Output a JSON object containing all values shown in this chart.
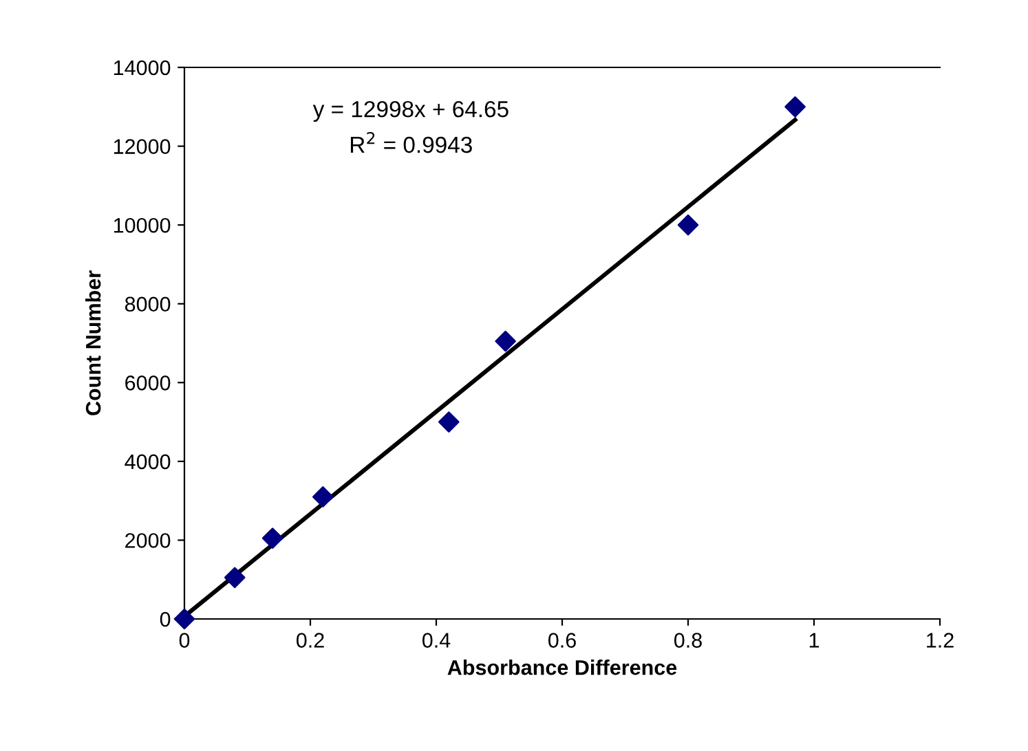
{
  "chart_data": {
    "type": "scatter",
    "xlabel": "Absorbance Difference",
    "ylabel": "Count Number",
    "series": [
      {
        "color": "#000080",
        "marker": "diamond",
        "x": [
          0,
          0.08,
          0.14,
          0.22,
          0.42,
          0.51,
          0.8,
          0.97
        ],
        "values": [
          0,
          1050,
          2050,
          3100,
          5000,
          7050,
          10000,
          13000
        ]
      },
      {
        "type": "line",
        "color": "#000000",
        "marker": "none",
        "line_style": "solid",
        "x": [
          0,
          0.97
        ],
        "values": [
          65,
          12670
        ]
      }
    ],
    "annotations": [
      "y = 12998x + 64.65",
      "R$^{2}$ = 0.9943"
    ],
    "xlim": [
      0,
      1.2
    ],
    "xticks": [
      0,
      0.2,
      0.4,
      0.6,
      0.8,
      1,
      1.2
    ],
    "ylim": [
      0,
      14000
    ],
    "yticks": [
      0,
      2000,
      4000,
      6000,
      8000,
      10000,
      12000,
      14000
    ],
    "grid": false,
    "legend": false
  }
}
